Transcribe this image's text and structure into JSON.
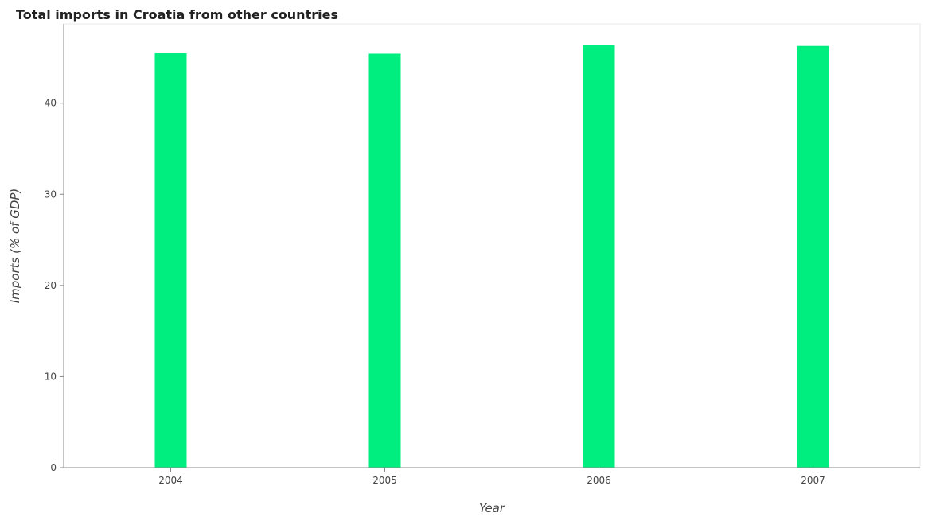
{
  "chart_data": {
    "type": "bar",
    "title": "Total imports in Croatia from other countries",
    "xlabel": "Year",
    "ylabel": "Imports (% of GDP)",
    "categories": [
      "2004",
      "2005",
      "2006",
      "2007"
    ],
    "values": [
      45.47,
      45.43,
      46.41,
      46.28
    ],
    "ylim": [
      0,
      48.7
    ],
    "yticks": [
      0,
      10,
      20,
      30,
      40
    ],
    "ytick_labels": [
      "0",
      "10",
      "20",
      "30",
      "40"
    ],
    "bar_color": "#00ee7f",
    "grid": false,
    "legend": "none"
  }
}
